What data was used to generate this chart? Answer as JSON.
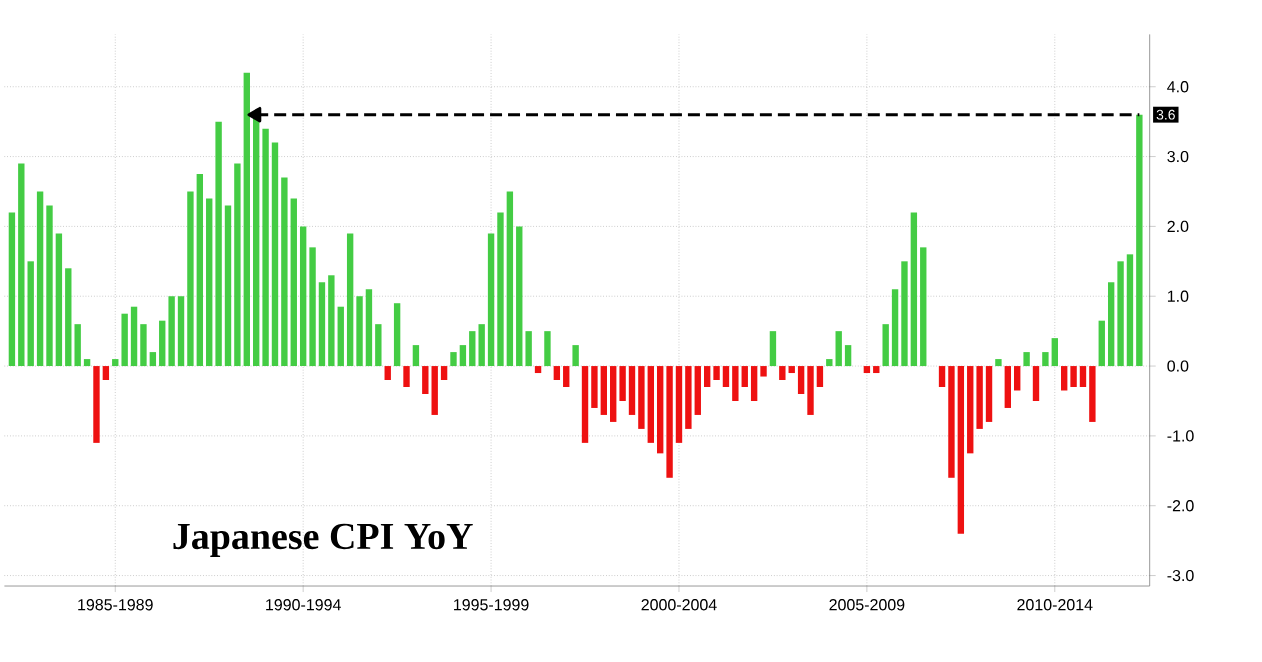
{
  "chart_data": {
    "type": "bar",
    "title": "Japanese CPI YoY",
    "categories": [
      null,
      null,
      null,
      null,
      null,
      null,
      null,
      null,
      null,
      null,
      null,
      "1985-1989",
      null,
      null,
      null,
      null,
      null,
      null,
      null,
      null,
      null,
      null,
      null,
      null,
      null,
      null,
      null,
      null,
      null,
      null,
      null,
      "1990-1994",
      null,
      null,
      null,
      null,
      null,
      null,
      null,
      null,
      null,
      null,
      null,
      null,
      null,
      null,
      null,
      null,
      null,
      null,
      null,
      "1995-1999",
      null,
      null,
      null,
      null,
      null,
      null,
      null,
      null,
      null,
      null,
      null,
      null,
      null,
      null,
      null,
      null,
      null,
      null,
      null,
      "2000-2004",
      null,
      null,
      null,
      null,
      null,
      null,
      null,
      null,
      null,
      null,
      null,
      null,
      null,
      null,
      null,
      null,
      null,
      null,
      null,
      "2005-2009",
      null,
      null,
      null,
      null,
      null,
      null,
      null,
      null,
      null,
      null,
      null,
      null,
      null,
      null,
      null,
      null,
      null,
      null,
      null,
      "2010-2014",
      null,
      null,
      null,
      null,
      null,
      null,
      null,
      null,
      null
    ],
    "values": [
      2.2,
      2.9,
      1.5,
      2.5,
      2.3,
      1.9,
      1.4,
      0.6,
      0.1,
      -1.1,
      -0.2,
      0.1,
      0.75,
      0.85,
      0.6,
      0.2,
      0.65,
      1.0,
      1.0,
      2.5,
      2.75,
      2.4,
      3.5,
      2.3,
      2.9,
      4.2,
      3.6,
      3.4,
      3.2,
      2.7,
      2.4,
      2.0,
      1.7,
      1.2,
      1.3,
      0.85,
      1.9,
      1.0,
      1.1,
      0.6,
      -0.2,
      0.9,
      -0.3,
      0.3,
      -0.4,
      -0.7,
      -0.2,
      0.2,
      0.3,
      0.5,
      0.6,
      1.9,
      2.2,
      2.5,
      2.0,
      0.5,
      -0.1,
      0.5,
      -0.2,
      -0.3,
      0.3,
      -1.1,
      -0.6,
      -0.7,
      -0.8,
      -0.5,
      -0.7,
      -0.9,
      -1.1,
      -1.25,
      -1.6,
      -1.1,
      -0.9,
      -0.7,
      -0.3,
      -0.2,
      -0.3,
      -0.5,
      -0.3,
      -0.5,
      -0.15,
      0.5,
      -0.2,
      -0.1,
      -0.4,
      -0.7,
      -0.3,
      0.1,
      0.5,
      0.3,
      0.0,
      -0.1,
      -0.1,
      0.6,
      1.1,
      1.5,
      2.2,
      1.7,
      0.0,
      -0.3,
      -1.6,
      -2.4,
      -1.25,
      -0.9,
      -0.8,
      0.1,
      -0.6,
      -0.35,
      0.2,
      -0.5,
      0.2,
      0.4,
      -0.35,
      -0.3,
      -0.3,
      -0.8,
      0.65,
      1.2,
      1.5,
      1.6,
      3.6
    ],
    "colors": [
      "#44cc44",
      "#44cc44",
      "#44cc44",
      "#44cc44",
      "#44cc44",
      "#44cc44",
      "#44cc44",
      "#44cc44",
      "#44cc44",
      "#ee1111",
      "#ee1111",
      "#44cc44",
      "#44cc44",
      "#44cc44",
      "#44cc44",
      "#44cc44",
      "#44cc44",
      "#44cc44",
      "#44cc44",
      "#44cc44",
      "#44cc44",
      "#44cc44",
      "#44cc44",
      "#44cc44",
      "#44cc44",
      "#44cc44",
      "#44cc44",
      "#44cc44",
      "#44cc44",
      "#44cc44",
      "#44cc44",
      "#44cc44",
      "#44cc44",
      "#44cc44",
      "#44cc44",
      "#44cc44",
      "#44cc44",
      "#44cc44",
      "#44cc44",
      "#44cc44",
      "#ee1111",
      "#44cc44",
      "#ee1111",
      "#44cc44",
      "#ee1111",
      "#ee1111",
      "#ee1111",
      "#44cc44",
      "#44cc44",
      "#44cc44",
      "#44cc44",
      "#44cc44",
      "#44cc44",
      "#44cc44",
      "#44cc44",
      "#44cc44",
      "#ee1111",
      "#44cc44",
      "#ee1111",
      "#ee1111",
      "#44cc44",
      "#ee1111",
      "#ee1111",
      "#ee1111",
      "#ee1111",
      "#ee1111",
      "#ee1111",
      "#ee1111",
      "#ee1111",
      "#ee1111",
      "#ee1111",
      "#ee1111",
      "#ee1111",
      "#ee1111",
      "#ee1111",
      "#ee1111",
      "#ee1111",
      "#ee1111",
      "#ee1111",
      "#ee1111",
      "#ee1111",
      "#44cc44",
      "#ee1111",
      "#ee1111",
      "#ee1111",
      "#ee1111",
      "#ee1111",
      "#44cc44",
      "#44cc44",
      "#44cc44",
      "#44cc44",
      "#ee1111",
      "#ee1111",
      "#44cc44",
      "#44cc44",
      "#44cc44",
      "#44cc44",
      "#44cc44",
      "#44cc44",
      "#ee1111",
      "#ee1111",
      "#ee1111",
      "#ee1111",
      "#ee1111",
      "#ee1111",
      "#44cc44",
      "#ee1111",
      "#ee1111",
      "#44cc44",
      "#ee1111",
      "#44cc44",
      "#44cc44",
      "#ee1111",
      "#ee1111",
      "#ee1111",
      "#ee1111",
      "#44cc44",
      "#44cc44",
      "#44cc44",
      "#44cc44",
      "#44cc44"
    ],
    "series": [
      {
        "type": "line",
        "values": [
          null,
          null,
          null,
          null,
          null,
          null,
          null,
          null,
          null,
          null,
          null,
          null,
          null,
          null,
          null,
          null,
          null,
          null,
          null,
          null,
          null,
          null,
          null,
          null,
          null,
          null,
          3.6,
          null,
          null,
          null,
          null,
          null,
          null,
          null,
          null,
          null,
          null,
          null,
          null,
          null,
          null,
          null,
          null,
          null,
          null,
          null,
          null,
          null,
          null,
          null,
          null,
          null,
          null,
          null,
          null,
          null,
          null,
          null,
          null,
          null,
          null,
          null,
          null,
          null,
          null,
          null,
          null,
          null,
          null,
          null,
          null,
          null,
          null,
          null,
          null,
          null,
          null,
          null,
          null,
          null,
          null,
          null,
          null,
          null,
          null,
          null,
          null,
          null,
          null,
          null,
          null,
          null,
          null,
          null,
          null,
          null,
          null,
          null,
          null,
          null,
          null,
          null,
          null,
          null,
          null,
          null,
          null,
          null,
          null,
          null,
          null,
          null,
          null,
          null,
          null,
          null,
          null,
          null,
          null,
          null,
          3.6
        ],
        "color": "#000000",
        "line_style": "dashed",
        "marker": "triangle",
        "value_labels": [
          null,
          null,
          null,
          null,
          null,
          null,
          null,
          null,
          null,
          null,
          null,
          null,
          null,
          null,
          null,
          null,
          null,
          null,
          null,
          null,
          null,
          null,
          null,
          null,
          null,
          null,
          null,
          null,
          null,
          null,
          null,
          null,
          null,
          null,
          null,
          null,
          null,
          null,
          null,
          null,
          null,
          null,
          null,
          null,
          null,
          null,
          null,
          null,
          null,
          null,
          null,
          null,
          null,
          null,
          null,
          null,
          null,
          null,
          null,
          null,
          null,
          null,
          null,
          null,
          null,
          null,
          null,
          null,
          null,
          null,
          null,
          null,
          null,
          null,
          null,
          null,
          null,
          null,
          null,
          null,
          null,
          null,
          null,
          null,
          null,
          null,
          null,
          null,
          null,
          null,
          null,
          null,
          null,
          null,
          null,
          null,
          null,
          null,
          null,
          null,
          null,
          null,
          null,
          null,
          null,
          null,
          null,
          null,
          null,
          null,
          null,
          null,
          null,
          null,
          null,
          null,
          null,
          null,
          null,
          null,
          "3.6"
        ]
      }
    ],
    "ylim": [
      -3.15,
      4.75
    ],
    "yticks": [
      {
        "value": -3,
        "label": "-3.0"
      },
      {
        "value": -2,
        "label": "-2.0"
      },
      {
        "value": -1,
        "label": "-1.0"
      },
      {
        "value": 0,
        "label": "0.0"
      },
      {
        "value": 1,
        "label": "1.0"
      },
      {
        "value": 2,
        "label": "2.0"
      },
      {
        "value": 3,
        "label": "3.0"
      },
      {
        "value": 4,
        "label": "4.0"
      }
    ],
    "grid": true
  }
}
